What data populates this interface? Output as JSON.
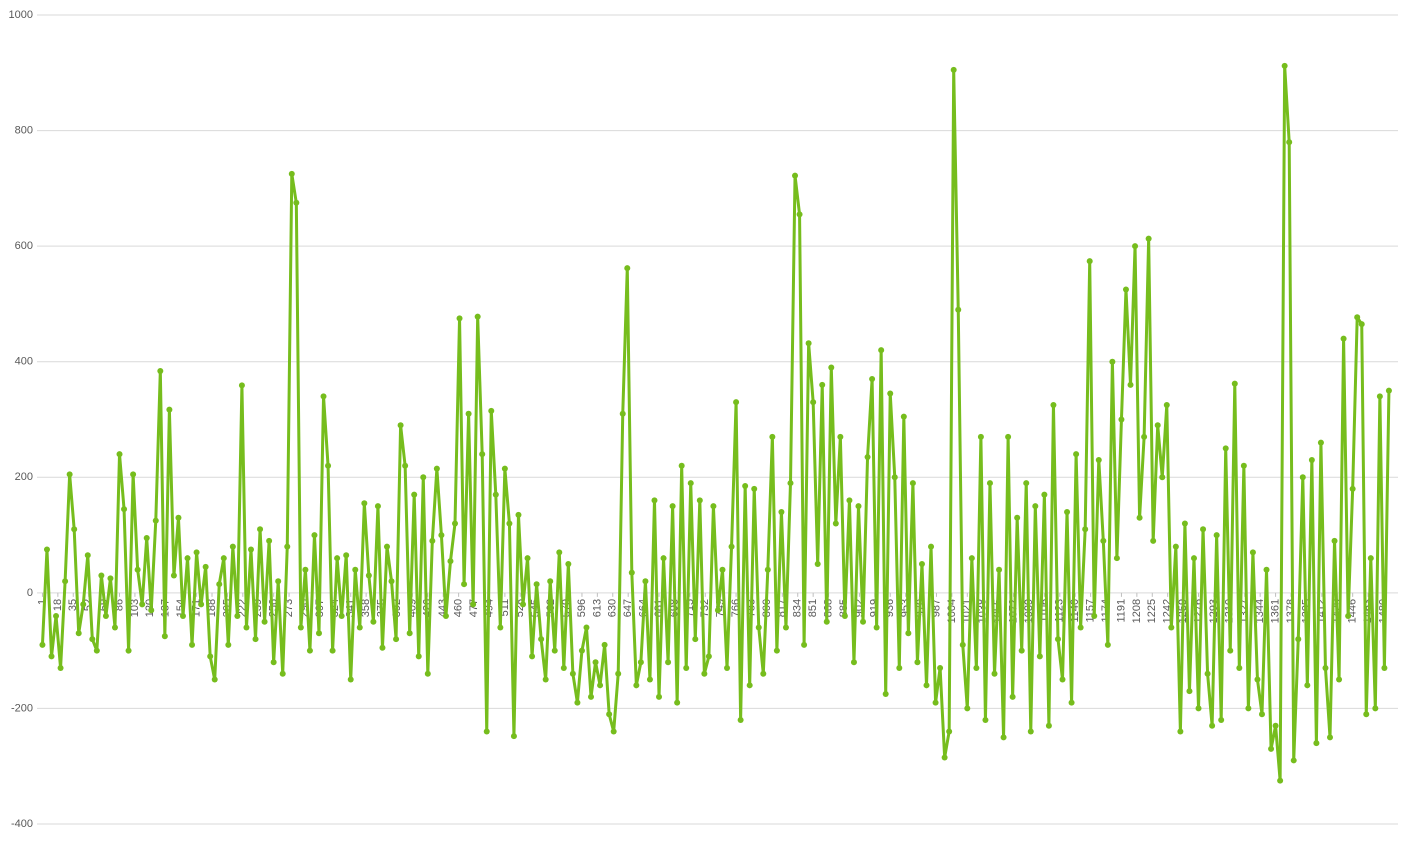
{
  "chart_data": {
    "type": "line",
    "x": [
      1,
      6,
      11,
      16,
      21,
      26,
      31,
      36,
      41,
      46,
      51,
      56,
      61,
      66,
      71,
      76,
      81,
      86,
      91,
      96,
      101,
      106,
      111,
      116,
      121,
      126,
      131,
      136,
      141,
      146,
      151,
      156,
      161,
      166,
      171,
      176,
      181,
      186,
      191,
      196,
      201,
      206,
      211,
      216,
      221,
      226,
      231,
      236,
      241,
      246,
      251,
      256,
      261,
      266,
      271,
      276,
      281,
      286,
      291,
      296,
      301,
      306,
      311,
      316,
      321,
      326,
      331,
      336,
      341,
      346,
      351,
      356,
      361,
      366,
      371,
      376,
      381,
      386,
      391,
      396,
      401,
      406,
      411,
      416,
      421,
      426,
      431,
      436,
      441,
      446,
      451,
      456,
      461,
      466,
      471,
      476,
      481,
      486,
      491,
      496,
      501,
      506,
      511,
      516,
      521,
      526,
      531,
      536,
      541,
      546,
      551,
      556,
      561,
      566,
      571,
      576,
      581,
      586,
      591,
      596,
      601,
      606,
      611,
      616,
      621,
      626,
      631,
      636,
      641,
      646,
      651,
      656,
      661,
      666,
      671,
      676,
      681,
      686,
      691,
      696,
      701,
      706,
      711,
      716,
      721,
      726,
      731,
      736,
      741,
      746,
      751,
      756,
      761,
      766,
      771,
      776,
      781,
      786,
      791,
      796,
      801,
      806,
      811,
      816,
      821,
      826,
      831,
      836,
      841,
      846,
      851,
      856,
      861,
      866,
      871,
      876,
      881,
      886,
      891,
      896,
      901,
      906,
      911,
      916,
      921,
      926,
      931,
      936,
      941,
      946,
      951,
      956,
      961,
      966,
      971,
      976,
      981,
      986,
      991,
      996,
      1001,
      1006,
      1011,
      1016,
      1021,
      1026,
      1031,
      1036,
      1041,
      1046,
      1051,
      1056,
      1061,
      1066,
      1071,
      1076,
      1081,
      1086,
      1091,
      1096,
      1101,
      1106,
      1111,
      1116,
      1121,
      1126,
      1131,
      1136,
      1141,
      1146,
      1151,
      1156,
      1161,
      1166,
      1171,
      1176,
      1181,
      1186,
      1191,
      1196,
      1201,
      1206,
      1211,
      1216,
      1221,
      1226,
      1231,
      1236,
      1241,
      1246,
      1251,
      1256,
      1261,
      1266,
      1271,
      1276,
      1281,
      1286,
      1291,
      1296,
      1301,
      1306,
      1311,
      1316,
      1321,
      1326,
      1331,
      1336,
      1341,
      1346,
      1351,
      1356,
      1361,
      1366,
      1371,
      1376,
      1381,
      1386,
      1391,
      1396,
      1401,
      1406,
      1411,
      1416,
      1421,
      1426,
      1431,
      1436,
      1441,
      1446,
      1451,
      1456,
      1461,
      1466,
      1471,
      1476,
      1481,
      1486
    ],
    "series": [
      {
        "color": "#76bd1d",
        "values": [
          -90,
          75,
          -110,
          -40,
          -130,
          20,
          205,
          110,
          -70,
          -20,
          65,
          -80,
          -100,
          30,
          -40,
          25,
          -60,
          240,
          145,
          -100,
          205,
          40,
          -20,
          95,
          -30,
          125,
          384,
          -75,
          317,
          30,
          130,
          -40,
          60,
          -90,
          70,
          -20,
          45,
          -110,
          -150,
          15,
          60,
          -90,
          80,
          -40,
          359,
          -60,
          75,
          -80,
          110,
          -50,
          90,
          -120,
          20,
          -140,
          80,
          725,
          675,
          -60,
          40,
          -100,
          100,
          -70,
          340,
          220,
          -100,
          60,
          -40,
          65,
          -150,
          40,
          -60,
          155,
          30,
          -50,
          150,
          -95,
          80,
          20,
          -80,
          290,
          220,
          -70,
          170,
          -110,
          200,
          -140,
          90,
          215,
          100,
          -40,
          55,
          120,
          475,
          15,
          310,
          -20,
          478,
          240,
          -240,
          315,
          170,
          -60,
          215,
          120,
          -248,
          135,
          -20,
          60,
          -110,
          15,
          -80,
          -150,
          20,
          -100,
          70,
          -130,
          50,
          -140,
          -190,
          -100,
          -60,
          -180,
          -120,
          -160,
          -90,
          -210,
          -240,
          -140,
          310,
          562,
          35,
          -160,
          -120,
          20,
          -150,
          160,
          -180,
          60,
          -120,
          150,
          -190,
          220,
          -130,
          190,
          -80,
          160,
          -140,
          -110,
          150,
          -30,
          40,
          -130,
          80,
          330,
          -220,
          185,
          -160,
          180,
          -60,
          -140,
          40,
          270,
          -100,
          140,
          -60,
          190,
          722,
          655,
          -90,
          432,
          330,
          50,
          360,
          -50,
          390,
          120,
          270,
          -40,
          160,
          -120,
          150,
          -50,
          235,
          370,
          -60,
          420,
          -175,
          345,
          200,
          -130,
          305,
          -70,
          190,
          -120,
          50,
          -160,
          80,
          -190,
          -130,
          -285,
          -240,
          905,
          490,
          -90,
          -200,
          60,
          -130,
          270,
          -220,
          190,
          -140,
          40,
          -250,
          270,
          -180,
          130,
          -100,
          190,
          -240,
          150,
          -110,
          170,
          -230,
          325,
          -80,
          -150,
          140,
          -190,
          240,
          -60,
          110,
          574,
          -40,
          230,
          90,
          -90,
          400,
          60,
          300,
          525,
          360,
          600,
          130,
          270,
          613,
          90,
          290,
          200,
          325,
          -60,
          80,
          -240,
          120,
          -170,
          60,
          -200,
          110,
          -140,
          -230,
          100,
          -220,
          250,
          -100,
          362,
          -130,
          220,
          -200,
          70,
          -150,
          -210,
          40,
          -270,
          -230,
          -325,
          912,
          780,
          -290,
          -80,
          200,
          -160,
          230,
          -260,
          260,
          -130,
          -250,
          90,
          -150,
          440,
          -40,
          180,
          477,
          465,
          -210,
          60,
          -200,
          340,
          -130,
          350
        ]
      }
    ],
    "xlim": [
      -5,
      1496
    ],
    "xticks": [
      1,
      18,
      35,
      52,
      69,
      86,
      103,
      120,
      137,
      154,
      171,
      188,
      205,
      222,
      239,
      256,
      273,
      290,
      307,
      324,
      341,
      358,
      375,
      392,
      409,
      426,
      443,
      460,
      477,
      494,
      511,
      528,
      545,
      562,
      579,
      596,
      613,
      630,
      647,
      664,
      681,
      698,
      715,
      732,
      749,
      766,
      783,
      800,
      817,
      834,
      851,
      868,
      885,
      902,
      919,
      936,
      953,
      970,
      987,
      1004,
      1021,
      1038,
      1055,
      1072,
      1089,
      1106,
      1123,
      1140,
      1157,
      1174,
      1191,
      1208,
      1225,
      1242,
      1259,
      1276,
      1293,
      1310,
      1327,
      1344,
      1361,
      1378,
      1395,
      1412,
      1429,
      1446,
      1463,
      1480
    ],
    "ylim": [
      -400,
      1000
    ],
    "yticks": [
      -400,
      -200,
      0,
      200,
      400,
      600,
      800,
      1000
    ],
    "grid": true
  }
}
